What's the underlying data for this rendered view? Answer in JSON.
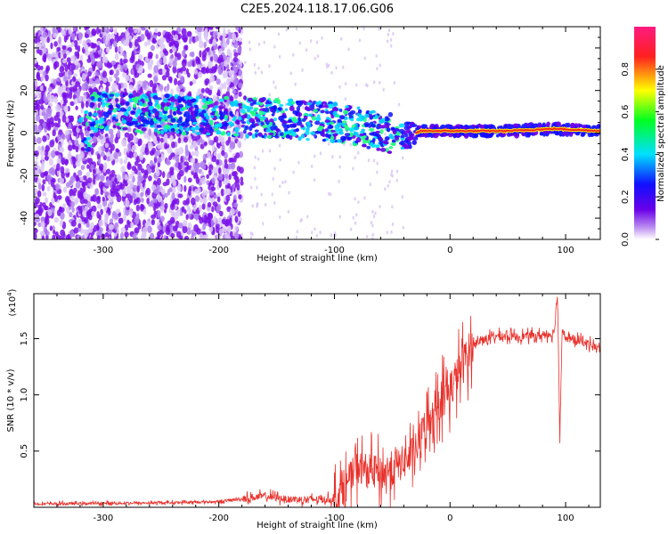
{
  "title": "C2E5.2024.118.17.06.G06",
  "top_panel": {
    "xlabel": "Height of straight line (km)",
    "ylabel": "Frequency (Hz)",
    "colorbar_label": "Normalized spectral amplitude",
    "x_ticks": [
      "-300",
      "-200",
      "-100",
      "0",
      "100"
    ],
    "y_ticks": [
      "40",
      "20",
      "0",
      "-20",
      "-40"
    ],
    "cb_ticks": [
      "0.0",
      "0.2",
      "0.4",
      "0.6",
      "0.8"
    ]
  },
  "bottom_panel": {
    "xlabel": "Height of straight line (km)",
    "ylabel": "SNR (10 * v/v)",
    "exponent": "(x10",
    "exponent_power": "4",
    "exponent_close": ")",
    "x_ticks": [
      "-300",
      "-200",
      "-100",
      "0",
      "100"
    ],
    "y_ticks": [
      "1.5",
      "1.0",
      "0.5"
    ],
    "line_color": "#e8302a"
  },
  "chart_data": [
    {
      "type": "heatmap",
      "xlim": [
        -360,
        130
      ],
      "ylim": [
        -50,
        50
      ],
      "x_ticks": [
        -300,
        -200,
        -100,
        0,
        100
      ],
      "y_ticks": [
        40,
        20,
        0,
        -20,
        -40
      ],
      "colorbar_range": [
        0,
        1
      ],
      "colormap": "rainbow (purple → blue → cyan → green → yellow → red → pink)",
      "ridge": [
        {
          "x": -310,
          "freq": 10
        },
        {
          "x": -250,
          "freq": 9
        },
        {
          "x": -200,
          "freq": 8
        },
        {
          "x": -150,
          "freq": 7
        },
        {
          "x": -100,
          "freq": 5
        },
        {
          "x": -60,
          "freq": 1
        },
        {
          "x": -40,
          "freq": -2
        },
        {
          "x": -25,
          "freq": 1
        },
        {
          "x": 0,
          "freq": 1
        },
        {
          "x": 50,
          "freq": 1
        },
        {
          "x": 90,
          "freq": 2
        },
        {
          "x": 130,
          "freq": 1
        }
      ]
    },
    {
      "type": "line",
      "xlim": [
        -360,
        130
      ],
      "ylim": [
        0,
        19000
      ],
      "x_ticks": [
        -300,
        -200,
        -100,
        0,
        100
      ],
      "y_ticks": [
        15000,
        10000,
        5000
      ],
      "x": [
        -360,
        -250,
        -200,
        -160,
        -140,
        -100,
        -90,
        -80,
        -60,
        -40,
        -30,
        -20,
        -10,
        0,
        10,
        20,
        30,
        40,
        60,
        80,
        90,
        93,
        95,
        97,
        100,
        110,
        120,
        130
      ],
      "y": [
        300,
        400,
        500,
        1000,
        700,
        700,
        2000,
        3500,
        3000,
        4000,
        5000,
        7500,
        9500,
        10500,
        12500,
        14500,
        15000,
        15200,
        15200,
        15300,
        15500,
        19000,
        6000,
        16000,
        15000,
        14800,
        14600,
        14000
      ]
    }
  ]
}
